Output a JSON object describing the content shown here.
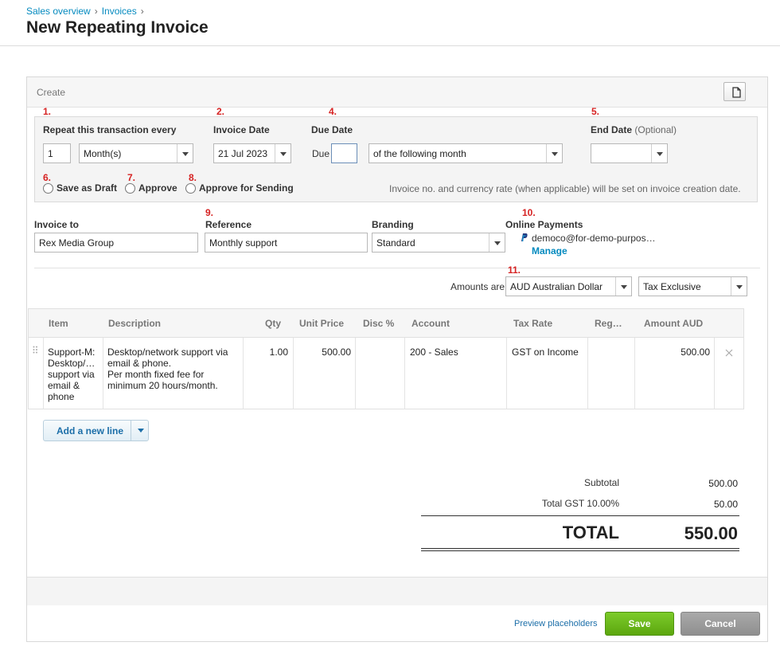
{
  "breadcrumb": [
    "Sales overview",
    "Invoices"
  ],
  "page_title": "New Repeating Invoice",
  "panel": {
    "create_label": "Create",
    "copy_icon": "copy-icon"
  },
  "markers": {
    "m1": "1.",
    "m2": "2.",
    "m4": "4.",
    "m5": "5.",
    "m6": "6.",
    "m7": "7.",
    "m8": "8.",
    "m9": "9.",
    "m10": "10.",
    "m11": "11."
  },
  "repeat": {
    "label": "Repeat this transaction every",
    "interval_value": "1",
    "period_value": "Month(s)",
    "invoice_date_label": "Invoice Date",
    "invoice_date_value": "21 Jul 2023",
    "due_date_label": "Due Date",
    "due_prefix": "Due",
    "due_value": "",
    "due_term_value": "of the following month",
    "end_date_label": "End Date",
    "end_date_optional": "(Optional)",
    "end_date_value": "",
    "options": [
      "Save as Draft",
      "Approve",
      "Approve for Sending"
    ],
    "note": "Invoice no. and currency rate (when applicable) will be set on invoice creation date."
  },
  "details": {
    "invoice_to_label": "Invoice to",
    "invoice_to_value": "Rex Media Group",
    "reference_label": "Reference",
    "reference_value": "Monthly support",
    "branding_label": "Branding",
    "branding_value": "Standard",
    "online_payments_label": "Online Payments",
    "online_payments_account": "democo@for-demo-purpos…",
    "manage_link": "Manage",
    "paypal_icon": "paypal-icon"
  },
  "amounts": {
    "label": "Amounts are:",
    "currency_value": "AUD Australian Dollar",
    "tax_mode_value": "Tax Exclusive"
  },
  "table": {
    "headers": [
      "Item",
      "Description",
      "Qty",
      "Unit Price",
      "Disc %",
      "Account",
      "Tax Rate",
      "Reg…",
      "Amount AUD"
    ],
    "rows": [
      {
        "item": [
          "Support-M:",
          "Desktop/…",
          "support via",
          "email &",
          "phone"
        ],
        "description": [
          "Desktop/network support via",
          "email & phone.",
          "Per month fixed fee for",
          "minimum 20 hours/month."
        ],
        "qty": "1.00",
        "unit_price": "500.00",
        "disc": "",
        "account": "200 - Sales",
        "tax_rate": "GST on Income",
        "region": "",
        "amount": "500.00"
      }
    ],
    "add_line_label": "Add a new line"
  },
  "totals": {
    "subtotal_label": "Subtotal",
    "subtotal_value": "500.00",
    "gst_label": "Total GST 10.00%",
    "gst_value": "50.00",
    "total_label": "TOTAL",
    "total_value": "550.00"
  },
  "footer": {
    "preview_label": "Preview placeholders",
    "save_label": "Save",
    "cancel_label": "Cancel"
  },
  "colors": {
    "link": "#048abf",
    "marker": "#d62222",
    "save": "#6bbd1c",
    "cancel": "#9b9b9b"
  }
}
